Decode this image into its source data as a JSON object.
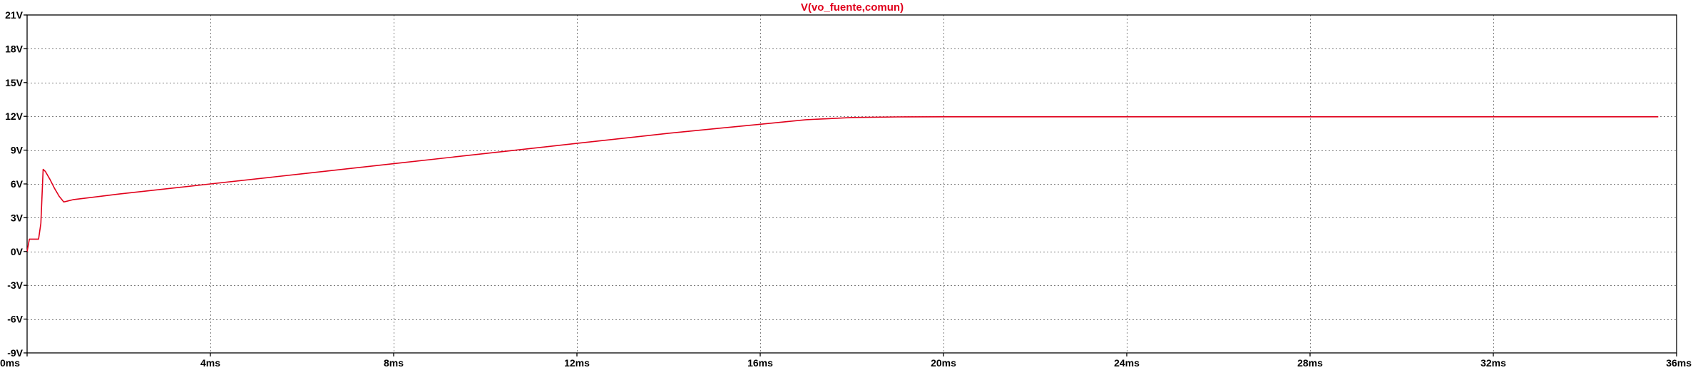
{
  "chart_data": {
    "type": "line",
    "title": "V(vo_fuente,comun)",
    "title_color": "#e0001b",
    "xlabel": "",
    "ylabel": "",
    "xlim": [
      0,
      36
    ],
    "ylim": [
      -9,
      21
    ],
    "x_unit": "ms",
    "y_unit": "V",
    "grid": true,
    "x_ticks": [
      0,
      4,
      8,
      12,
      16,
      20,
      24,
      28,
      32,
      36
    ],
    "x_tick_labels": [
      "0ms",
      "4ms",
      "8ms",
      "12ms",
      "16ms",
      "20ms",
      "24ms",
      "28ms",
      "32ms",
      "36ms"
    ],
    "y_ticks": [
      21,
      18,
      15,
      12,
      9,
      6,
      3,
      0,
      -3,
      -6,
      -9
    ],
    "y_tick_labels": [
      "21V",
      "18V",
      "15V",
      "12V",
      "9V",
      "6V",
      "3V",
      "0V",
      "-3V",
      "-6V",
      "-9V"
    ],
    "series": [
      {
        "color": "#e0001b",
        "x": [
          0,
          0.05,
          0.12,
          0.25,
          0.3,
          0.35,
          0.4,
          0.5,
          0.6,
          0.7,
          0.8,
          1,
          2,
          4,
          6,
          8,
          10,
          12,
          14,
          16,
          17,
          17.5,
          18,
          19,
          20,
          24,
          28,
          32,
          35.6
        ],
        "y": [
          0,
          1.1,
          1.1,
          1.1,
          2.5,
          7.3,
          7.1,
          6.4,
          5.6,
          4.9,
          4.4,
          4.6,
          5.1,
          6.0,
          6.9,
          7.8,
          8.7,
          9.6,
          10.5,
          11.3,
          11.7,
          11.8,
          11.9,
          11.95,
          11.96,
          11.96,
          11.96,
          11.96,
          11.96
        ]
      }
    ]
  }
}
